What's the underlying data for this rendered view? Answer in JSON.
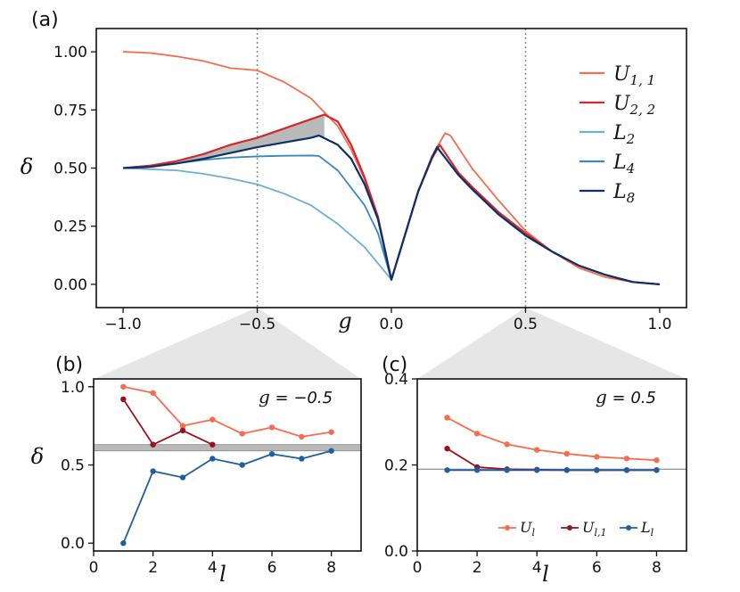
{
  "colors": {
    "U11": "#f46d4f",
    "U22": "#d62728",
    "L2": "#6baed6",
    "L4": "#3a87c0",
    "L8": "#08306b",
    "Ul": "#f46d4f",
    "Ul1": "#99101f",
    "Ll": "#1f5fa0",
    "band": "#b9b9b9",
    "zoom": "#e6e6e6"
  },
  "chart_data": [
    {
      "id": "a",
      "type": "line",
      "panel_label": "(a)",
      "xlabel": "g",
      "ylabel": "δ",
      "xlim": [
        -1.1,
        1.1
      ],
      "ylim": [
        -0.1,
        1.1
      ],
      "xticks": [
        -1.0,
        -0.5,
        0.0,
        0.5,
        1.0
      ],
      "xtick_labels": [
        "−1.0",
        "−0.5",
        "0.0",
        "0.5",
        "1.0"
      ],
      "yticks": [
        0.0,
        0.25,
        0.5,
        0.75,
        1.0
      ],
      "ytick_labels": [
        "0.00",
        "0.25",
        "0.50",
        "0.75",
        "1.00"
      ],
      "vlines": [
        -0.5,
        0.5
      ],
      "legend": [
        {
          "key": "U11",
          "base": "U",
          "sub": "1, 1"
        },
        {
          "key": "U22",
          "base": "U",
          "sub": "2, 2"
        },
        {
          "key": "L2",
          "base": "L",
          "sub": "2"
        },
        {
          "key": "L4",
          "base": "L",
          "sub": "4"
        },
        {
          "key": "L8",
          "base": "L",
          "sub": "8"
        }
      ],
      "legend_position": "right",
      "series": [
        {
          "key": "U11",
          "x": [
            -1.0,
            -0.9,
            -0.8,
            -0.7,
            -0.6,
            -0.5,
            -0.4,
            -0.3,
            -0.2,
            -0.15,
            -0.1,
            -0.05,
            0.0,
            0.1,
            0.15,
            0.2,
            0.22,
            0.3,
            0.4,
            0.5,
            0.6,
            0.7,
            0.8,
            0.9,
            1.0
          ],
          "y": [
            1.0,
            0.995,
            0.98,
            0.96,
            0.93,
            0.92,
            0.87,
            0.8,
            0.68,
            0.58,
            0.45,
            0.28,
            0.02,
            0.4,
            0.55,
            0.65,
            0.64,
            0.5,
            0.36,
            0.23,
            0.14,
            0.07,
            0.03,
            0.01,
            0.0
          ]
        },
        {
          "key": "U22",
          "x": [
            -1.0,
            -0.9,
            -0.8,
            -0.7,
            -0.6,
            -0.5,
            -0.4,
            -0.3,
            -0.25,
            -0.2,
            -0.15,
            -0.1,
            -0.05,
            0.0,
            0.1,
            0.15,
            0.18,
            0.25,
            0.3,
            0.4,
            0.5,
            0.6,
            0.7,
            0.8,
            0.9,
            1.0
          ],
          "y": [
            0.5,
            0.51,
            0.53,
            0.56,
            0.6,
            0.63,
            0.67,
            0.71,
            0.73,
            0.7,
            0.6,
            0.46,
            0.29,
            0.02,
            0.4,
            0.54,
            0.6,
            0.48,
            0.42,
            0.31,
            0.22,
            0.14,
            0.08,
            0.04,
            0.01,
            0.0
          ]
        },
        {
          "key": "L2",
          "x": [
            -1.0,
            -0.9,
            -0.8,
            -0.7,
            -0.6,
            -0.5,
            -0.4,
            -0.3,
            -0.2,
            -0.1,
            -0.05,
            0.0
          ],
          "y": [
            0.5,
            0.495,
            0.49,
            0.475,
            0.455,
            0.43,
            0.39,
            0.34,
            0.26,
            0.16,
            0.09,
            0.02
          ]
        },
        {
          "key": "L4",
          "x": [
            -1.0,
            -0.9,
            -0.8,
            -0.7,
            -0.6,
            -0.5,
            -0.4,
            -0.3,
            -0.27,
            -0.2,
            -0.1,
            -0.05,
            0.0
          ],
          "y": [
            0.5,
            0.51,
            0.52,
            0.535,
            0.545,
            0.55,
            0.553,
            0.554,
            0.552,
            0.49,
            0.34,
            0.22,
            0.02
          ]
        },
        {
          "key": "L8",
          "x": [
            -1.0,
            -0.9,
            -0.8,
            -0.7,
            -0.6,
            -0.5,
            -0.4,
            -0.3,
            -0.27,
            -0.2,
            -0.15,
            -0.1,
            -0.05,
            0.0,
            0.1,
            0.15,
            0.17,
            0.25,
            0.3,
            0.4,
            0.5,
            0.6,
            0.7,
            0.8,
            0.9,
            1.0
          ],
          "y": [
            0.5,
            0.505,
            0.52,
            0.54,
            0.565,
            0.59,
            0.61,
            0.63,
            0.64,
            0.6,
            0.54,
            0.43,
            0.28,
            0.02,
            0.4,
            0.54,
            0.59,
            0.47,
            0.41,
            0.3,
            0.21,
            0.14,
            0.08,
            0.04,
            0.01,
            0.0
          ]
        }
      ],
      "shaded_between": [
        "U22",
        "L8"
      ],
      "shaded_range": [
        -0.85,
        -0.25
      ]
    },
    {
      "id": "b",
      "type": "line",
      "panel_label": "(b)",
      "annotation_var": "g",
      "annotation_value": " = −0.5",
      "xlabel": "l",
      "ylabel": "δ",
      "xlim": [
        0,
        9
      ],
      "ylim": [
        -0.05,
        1.05
      ],
      "xticks": [
        0,
        2,
        4,
        6,
        8
      ],
      "xtick_labels": [
        "0",
        "2",
        "4",
        "6",
        "8"
      ],
      "yticks": [
        0.0,
        0.5,
        1.0
      ],
      "ytick_labels": [
        "0.0",
        "0.5",
        "1.0"
      ],
      "band": [
        0.59,
        0.63
      ],
      "series": [
        {
          "key": "Ul",
          "x": [
            1,
            2,
            3,
            4,
            5,
            6,
            7,
            8
          ],
          "y": [
            1.0,
            0.96,
            0.75,
            0.79,
            0.7,
            0.74,
            0.68,
            0.71
          ]
        },
        {
          "key": "Ul1",
          "x": [
            1,
            2,
            3,
            4
          ],
          "y": [
            0.92,
            0.63,
            0.72,
            0.63
          ]
        },
        {
          "key": "Ll",
          "x": [
            1,
            2,
            3,
            4,
            5,
            6,
            7,
            8
          ],
          "y": [
            0.0,
            0.46,
            0.42,
            0.54,
            0.5,
            0.57,
            0.54,
            0.59
          ]
        }
      ]
    },
    {
      "id": "c",
      "type": "line",
      "panel_label": "(c)",
      "annotation_var": "g",
      "annotation_value": " = 0.5",
      "xlabel": "l",
      "ylabel": "",
      "xlim": [
        0,
        9
      ],
      "ylim": [
        0.0,
        0.4
      ],
      "xticks": [
        0,
        2,
        4,
        6,
        8
      ],
      "xtick_labels": [
        "0",
        "2",
        "4",
        "6",
        "8"
      ],
      "yticks": [
        0.0,
        0.2,
        0.4
      ],
      "ytick_labels": [
        "0.0",
        "0.2",
        "0.4"
      ],
      "hline": 0.19,
      "legend": [
        {
          "key": "Ul",
          "base": "U",
          "sub": "l"
        },
        {
          "key": "Ul1",
          "base": "U",
          "sub": "l,1"
        },
        {
          "key": "Ll",
          "base": "L",
          "sub": "l"
        }
      ],
      "legend_position": "bottom-right",
      "series": [
        {
          "key": "Ul",
          "x": [
            1,
            2,
            3,
            4,
            5,
            6,
            7,
            8
          ],
          "y": [
            0.31,
            0.273,
            0.248,
            0.235,
            0.226,
            0.219,
            0.215,
            0.211
          ]
        },
        {
          "key": "Ul1",
          "x": [
            1,
            2,
            3,
            4,
            5,
            6,
            7,
            8
          ],
          "y": [
            0.238,
            0.195,
            0.19,
            0.189,
            0.188,
            0.188,
            0.188,
            0.188
          ]
        },
        {
          "key": "Ll",
          "x": [
            1,
            2,
            3,
            4,
            5,
            6,
            7,
            8
          ],
          "y": [
            0.188,
            0.188,
            0.188,
            0.188,
            0.188,
            0.188,
            0.188,
            0.188
          ]
        }
      ]
    }
  ]
}
